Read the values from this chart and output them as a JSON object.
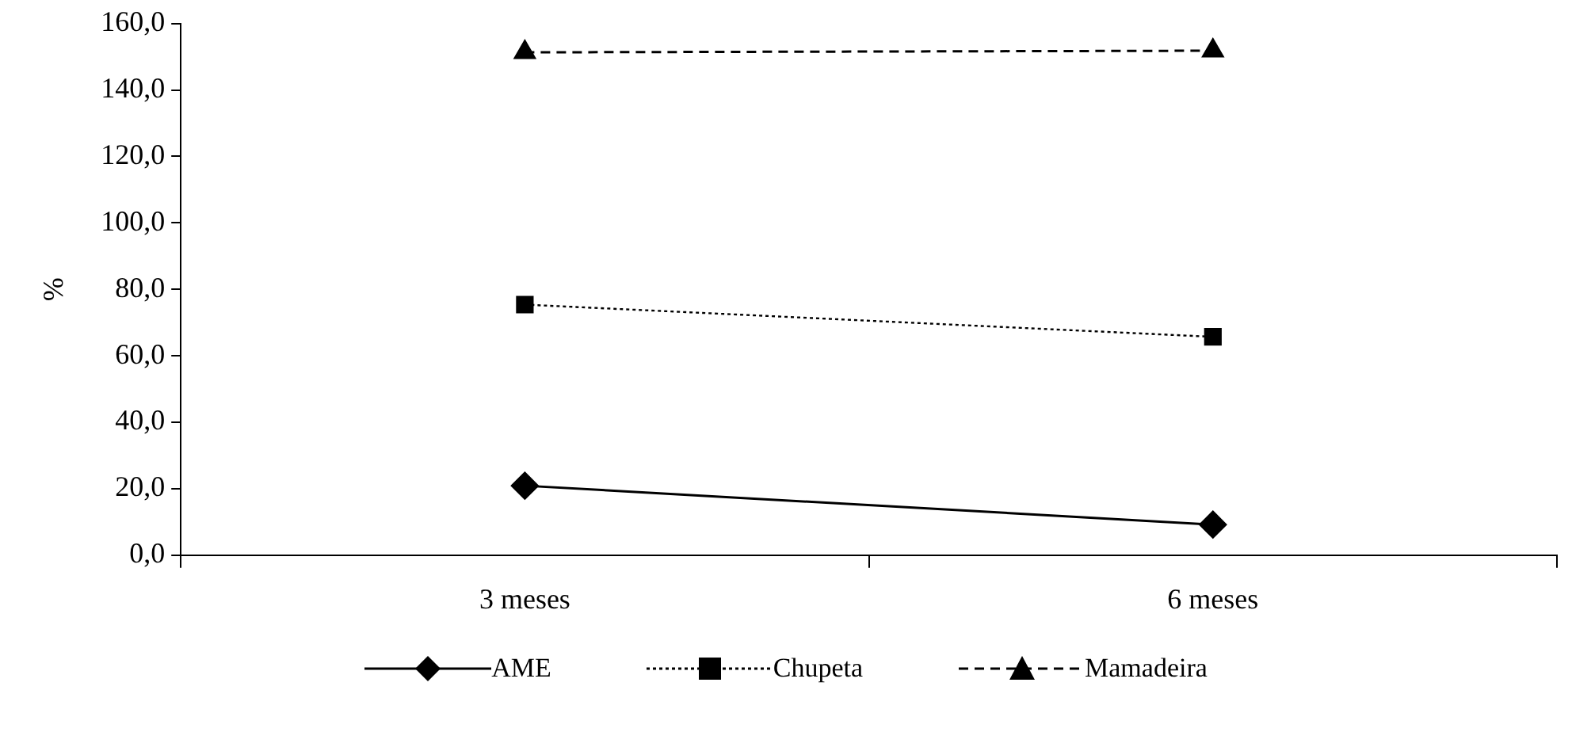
{
  "chart_data": {
    "type": "line",
    "ylabel": "%",
    "categories": [
      "3 meses",
      "6 meses"
    ],
    "series": [
      {
        "name": "AME",
        "color": "#000000",
        "values": [
          20.9,
          9.2
        ],
        "marker": "diamond",
        "line_style": "solid"
      },
      {
        "name": "Chupeta",
        "color": "#000000",
        "values": [
          75.4,
          65.7
        ],
        "marker": "square",
        "line_style": "dotted"
      },
      {
        "name": "Mamadeira",
        "color": "#000000",
        "values": [
          151.3,
          151.8
        ],
        "marker": "triangle",
        "line_style": "dashed"
      }
    ],
    "ylim": [
      0,
      160
    ],
    "yticks": [
      {
        "value": 0,
        "label": "0,0"
      },
      {
        "value": 20,
        "label": "20,0"
      },
      {
        "value": 40,
        "label": "40,0"
      },
      {
        "value": 60,
        "label": "60,0"
      },
      {
        "value": 80,
        "label": "80,0"
      },
      {
        "value": 100,
        "label": "100,0"
      },
      {
        "value": 120,
        "label": "120,0"
      },
      {
        "value": 140,
        "label": "140,0"
      },
      {
        "value": 160,
        "label": "160,0"
      }
    ],
    "grid": false,
    "legend": "bottom"
  }
}
